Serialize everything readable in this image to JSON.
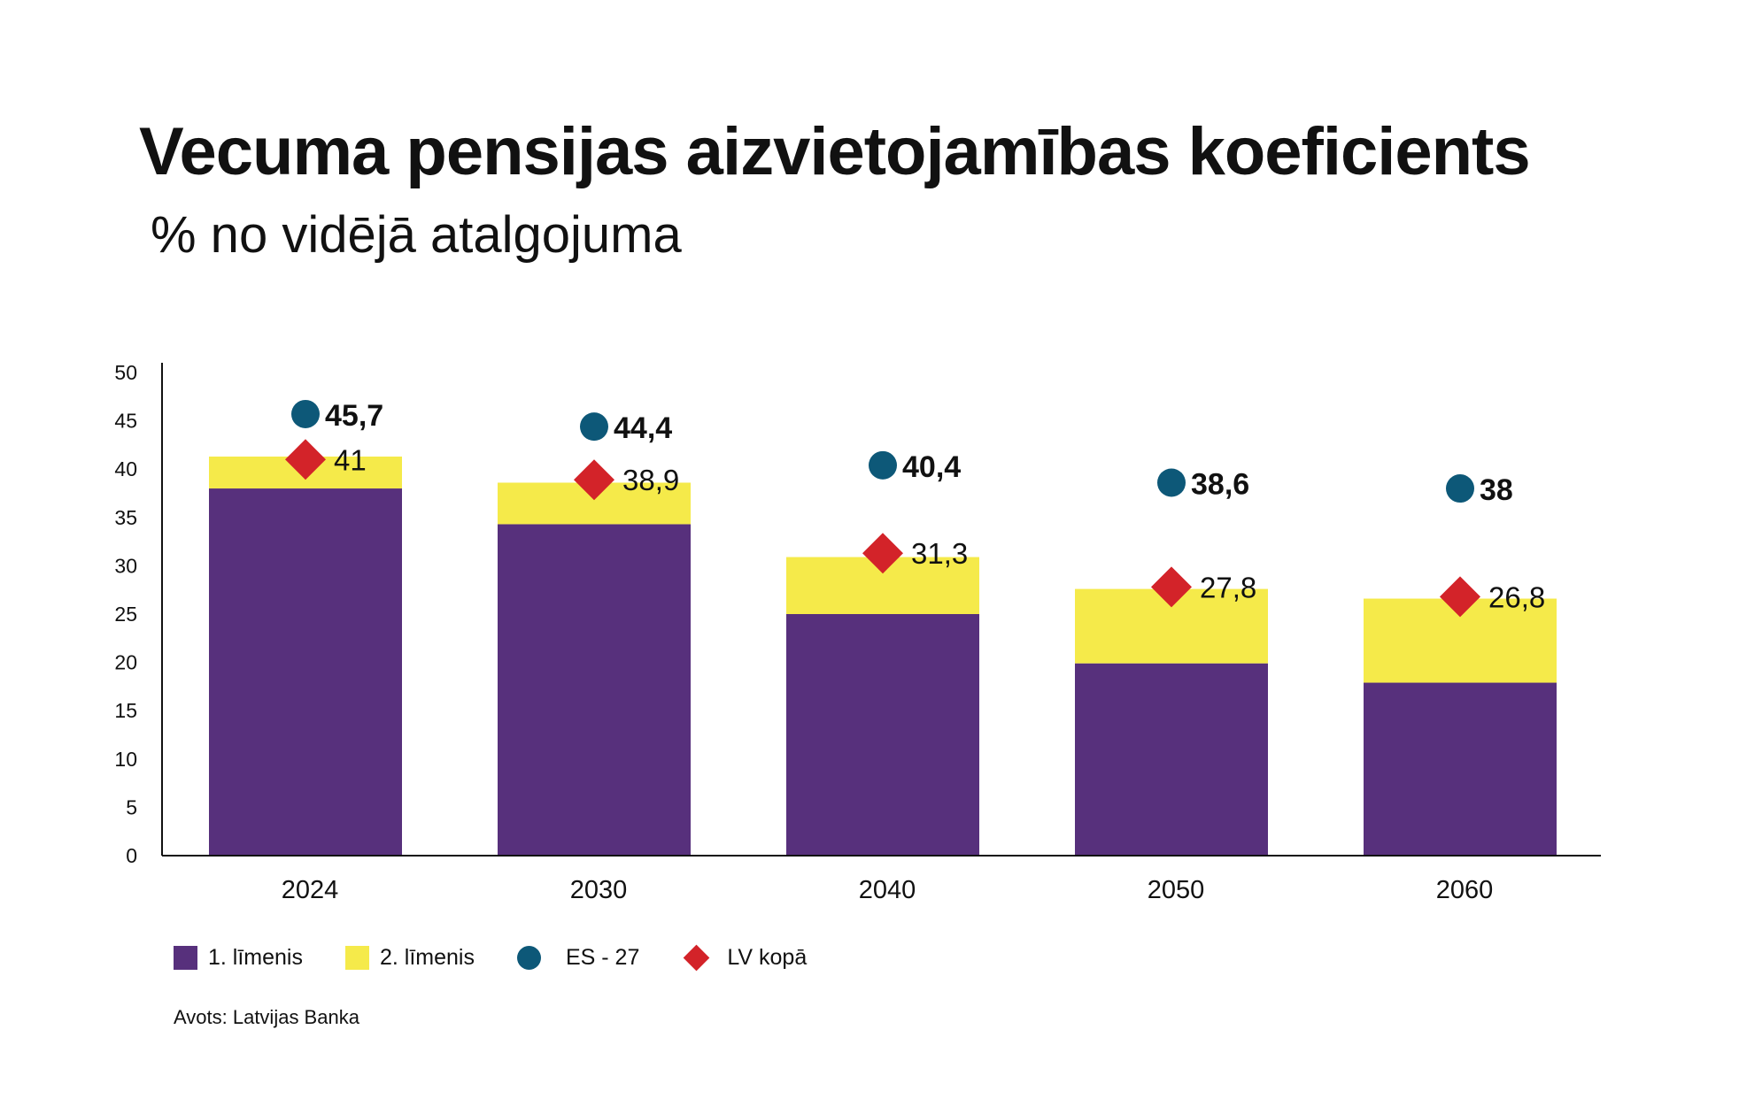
{
  "title": "Vecuma pensijas aizvietojamības koeficients",
  "subtitle": "% no vidējā atalgojuma",
  "source": "Avots: Latvijas Banka",
  "colors": {
    "level1": "#57307c",
    "level2": "#f5ea4a",
    "es27": "#0d5878",
    "lv_total": "#d32329",
    "axis": "#111111"
  },
  "legend": [
    {
      "label": "1. līmenis",
      "marker": "square",
      "color": "#57307c"
    },
    {
      "label": "2. līmenis",
      "marker": "square",
      "color": "#f5ea4a"
    },
    {
      "label": "ES - 27",
      "marker": "circle",
      "color": "#0d5878"
    },
    {
      "label": "LV kopā",
      "marker": "diamond",
      "color": "#d32329"
    }
  ],
  "chart_data": {
    "type": "bar",
    "stacked": true,
    "categories": [
      "2024",
      "2030",
      "2040",
      "2050",
      "2060"
    ],
    "series": [
      {
        "name": "1. līmenis",
        "type": "bar",
        "values": [
          38,
          34.3,
          25,
          19.9,
          17.9
        ]
      },
      {
        "name": "2. līmenis",
        "type": "bar",
        "values": [
          3.3,
          4.3,
          5.9,
          7.7,
          8.7
        ]
      },
      {
        "name": "ES - 27",
        "type": "scatter",
        "marker": "circle",
        "values": [
          45.7,
          44.4,
          40.4,
          38.6,
          38
        ],
        "labels": [
          "45,7",
          "44,4",
          "40,4",
          "38,6",
          "38"
        ]
      },
      {
        "name": "LV kopā",
        "type": "scatter",
        "marker": "diamond",
        "values": [
          41,
          38.9,
          31.3,
          27.8,
          26.8
        ],
        "labels": [
          "41",
          "38,9",
          "31,3",
          "27,8",
          "26,8"
        ]
      }
    ],
    "y_ticks": [
      "0",
      "5",
      "10",
      "15",
      "20",
      "25",
      "30",
      "35",
      "40",
      "45",
      "50"
    ],
    "ylim": [
      0,
      50
    ],
    "grid": false,
    "legend_position": "bottom-left"
  }
}
